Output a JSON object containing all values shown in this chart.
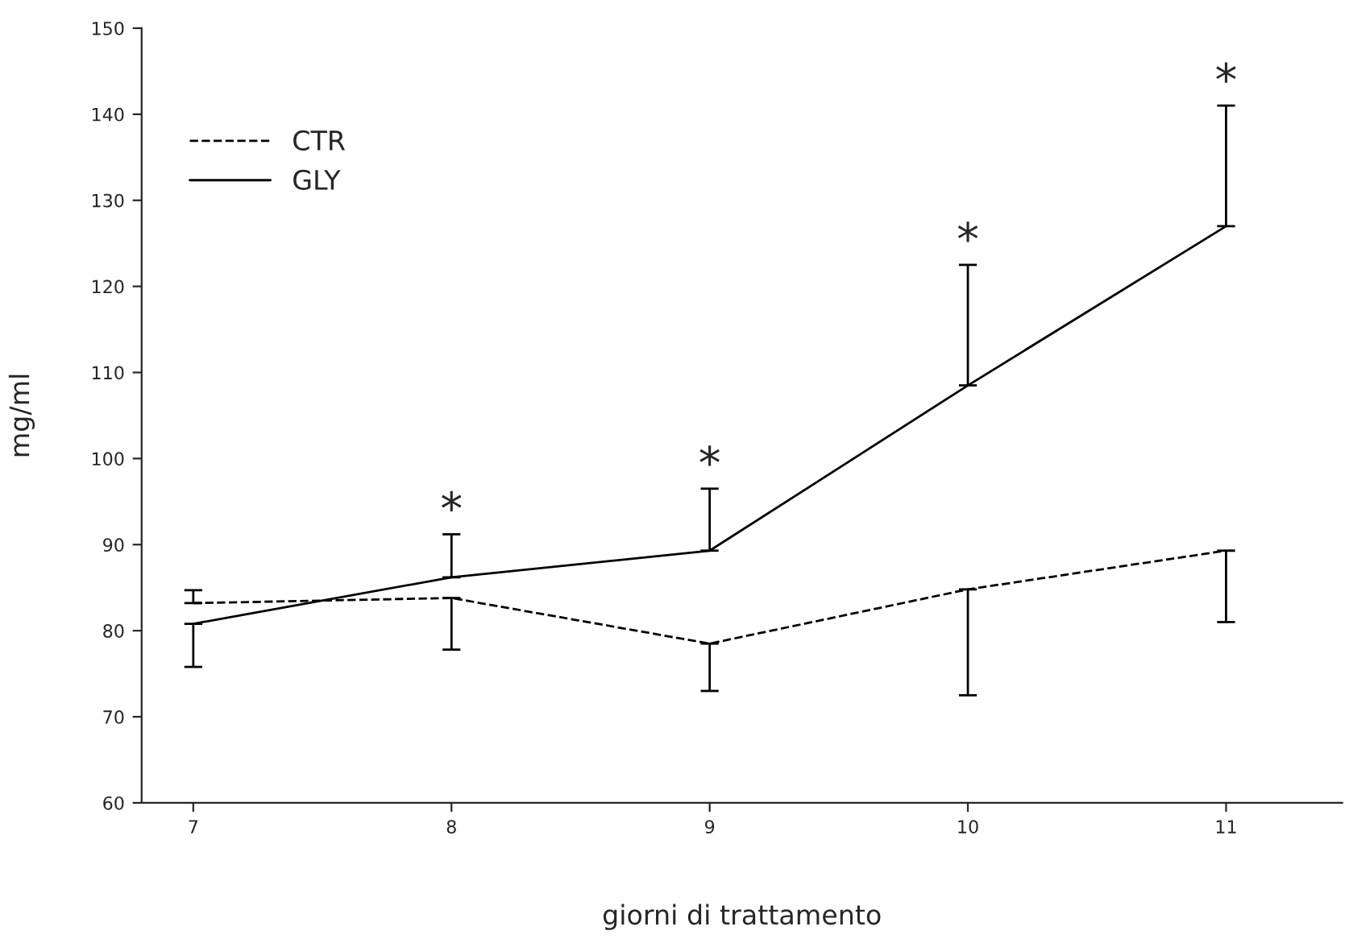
{
  "chart_data": {
    "type": "line",
    "xlabel": "giorni di trattamento",
    "ylabel": "mg/ml",
    "x": [
      7,
      8,
      9,
      10,
      11
    ],
    "series": [
      {
        "name": "CTR",
        "color": "#000000",
        "line_style": "dashed",
        "values": [
          83.2,
          83.8,
          78.5,
          84.8,
          89.3
        ],
        "errors": [
          [
            83.2,
            84.7
          ],
          [
            77.8,
            83.8
          ],
          [
            73,
            78.5
          ],
          [
            72.5,
            84.8
          ],
          [
            81,
            89.3
          ]
        ]
      },
      {
        "name": "GLY",
        "color": "#000000",
        "line_style": "solid",
        "values": [
          80.8,
          86.2,
          89.3,
          108.5,
          127
        ],
        "errors": [
          [
            75.8,
            80.8
          ],
          [
            86.2,
            91.2
          ],
          [
            89.3,
            96.5
          ],
          [
            108.5,
            122.5
          ],
          [
            127,
            141
          ]
        ]
      }
    ],
    "annotations": [
      {
        "text": "*",
        "x": 8,
        "y": 91.2
      },
      {
        "text": "*",
        "x": 9,
        "y": 96.5
      },
      {
        "text": "*",
        "x": 10,
        "y": 122.5
      },
      {
        "text": "*",
        "x": 11,
        "y": 141
      }
    ],
    "xlim": [
      6.8,
      11.45
    ],
    "ylim": [
      60,
      150
    ],
    "xticks": [
      7,
      8,
      9,
      10,
      11
    ],
    "yticks": [
      60,
      70,
      80,
      90,
      100,
      110,
      120,
      130,
      140,
      150
    ],
    "grid": false,
    "legend": "top left",
    "marker": "none"
  }
}
